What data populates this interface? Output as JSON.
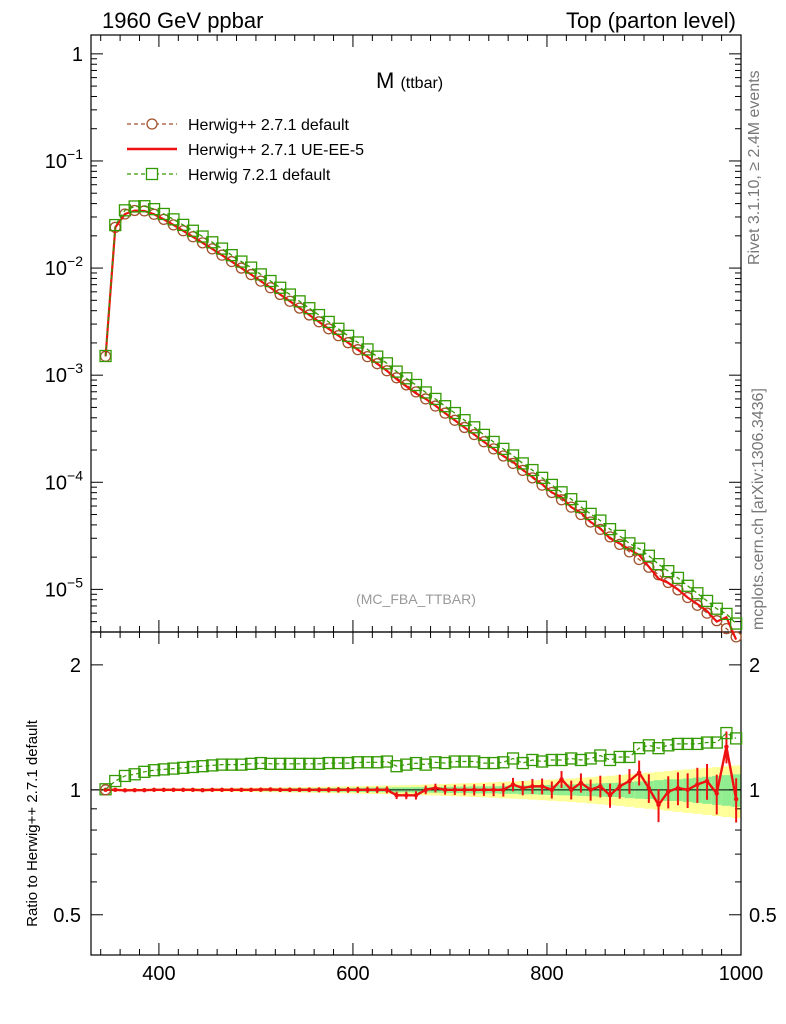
{
  "header": {
    "left": "1960 GeV ppbar",
    "right": "Top (parton level)",
    "side_top": "Rivet 3.1.10, ≥ 2.4M events",
    "side_bottom": "mcplots.cern.ch [arXiv:1306.3436]"
  },
  "chart_data": [
    {
      "type": "line",
      "title": "M (ttbar)",
      "title_main": "M",
      "title_sub": "(ttbar)",
      "watermark": "(MC_FBA_TTBAR)",
      "xlabel": "",
      "ylabel": "",
      "xlim": [
        330,
        1000
      ],
      "ylim": [
        4e-06,
        1.5
      ],
      "yscale": "log",
      "y_ticks": [
        {
          "v": 1,
          "label": "1"
        },
        {
          "v": 0.1,
          "label": "10",
          "exp": "−1"
        },
        {
          "v": 0.01,
          "label": "10",
          "exp": "−2"
        },
        {
          "v": 0.001,
          "label": "10",
          "exp": "−3"
        },
        {
          "v": 0.0001,
          "label": "10",
          "exp": "−4"
        },
        {
          "v": 1e-05,
          "label": "10",
          "exp": "−5"
        }
      ],
      "legend_placement": "top-left",
      "legend": [
        {
          "name": "Herwig++ 2.7.1 default",
          "color": "#a0522d",
          "style": "dashed",
          "marker": "circle"
        },
        {
          "name": "Herwig++ 2.7.1 UE-EE-5",
          "color": "#ee1111",
          "style": "solid",
          "marker": "none"
        },
        {
          "name": "Herwig 7.2.1 default",
          "color": "#339900",
          "style": "dashed",
          "marker": "square"
        }
      ],
      "x": [
        345,
        355,
        365,
        375,
        385,
        395,
        405,
        415,
        425,
        435,
        445,
        455,
        465,
        475,
        485,
        495,
        505,
        515,
        525,
        535,
        545,
        555,
        565,
        575,
        585,
        595,
        605,
        615,
        625,
        635,
        645,
        655,
        665,
        675,
        685,
        695,
        705,
        715,
        725,
        735,
        745,
        755,
        765,
        775,
        785,
        795,
        805,
        815,
        825,
        835,
        845,
        855,
        865,
        875,
        885,
        895,
        905,
        915,
        925,
        935,
        945,
        955,
        965,
        975,
        985,
        995
      ],
      "series": [
        {
          "name": "Herwig++ 2.7.1 default",
          "values": [
            0.0015,
            0.024,
            0.032,
            0.0345,
            0.0342,
            0.0318,
            0.0285,
            0.0253,
            0.0223,
            0.0196,
            0.0172,
            0.0151,
            0.0132,
            0.0115,
            0.01,
            0.0087,
            0.00755,
            0.00655,
            0.00567,
            0.0049,
            0.00423,
            0.00365,
            0.00315,
            0.00271,
            0.00234,
            0.00201,
            0.00173,
            0.00149,
            0.00128,
            0.0011,
            0.000945,
            0.000812,
            0.000698,
            0.0006,
            0.000515,
            0.000442,
            0.000379,
            0.000325,
            0.000279,
            0.000239,
            0.000205,
            0.000176,
            0.00015,
            0.000129,
            0.00011,
            9.4e-05,
            8.03e-05,
            6.86e-05,
            5.86e-05,
            5e-05,
            4.26e-05,
            3.63e-05,
            3.09e-05,
            2.63e-05,
            2.24e-05,
            1.9e-05,
            1.61e-05,
            1.37e-05,
            1.16e-05,
            9.9e-06,
            8.4e-06,
            7.1e-06,
            6e-06,
            5.1e-06,
            4.3e-06,
            3.6e-06
          ]
        },
        {
          "name": "Herwig++ 2.7.1 UE-EE-5",
          "values": [
            0.0015,
            0.024,
            0.0319,
            0.0344,
            0.0341,
            0.0318,
            0.0285,
            0.0253,
            0.0223,
            0.0196,
            0.0172,
            0.0151,
            0.0132,
            0.0115,
            0.01,
            0.00871,
            0.00756,
            0.00656,
            0.00567,
            0.0049,
            0.00423,
            0.00365,
            0.00315,
            0.00271,
            0.00234,
            0.00201,
            0.00173,
            0.00149,
            0.00128,
            0.0011,
            0.000917,
            0.000788,
            0.000677,
            0.0006,
            0.00052,
            0.000442,
            0.000379,
            0.000325,
            0.000279,
            0.000239,
            0.000205,
            0.000176,
            0.000155,
            0.000131,
            0.000112,
            9.6e-05,
            8.03e-05,
            7.27e-05,
            5.86e-05,
            5.2e-05,
            4.26e-05,
            3.7e-05,
            3e-05,
            2.68e-05,
            2.35e-05,
            2.09e-05,
            1.63e-05,
            1.26e-05,
            1.15e-05,
            1e-05,
            8.4e-06,
            7.3e-06,
            6.3e-06,
            5e-06,
            5.5e-06,
            3.4e-06
          ]
        },
        {
          "name": "Herwig 7.2.1 default",
          "values": [
            0.00151,
            0.0252,
            0.0346,
            0.0376,
            0.0378,
            0.0355,
            0.032,
            0.0285,
            0.0253,
            0.0223,
            0.0197,
            0.0174,
            0.0152,
            0.0132,
            0.0115,
            0.0101,
            0.00873,
            0.00757,
            0.00655,
            0.00566,
            0.00489,
            0.00422,
            0.00364,
            0.00314,
            0.00271,
            0.00233,
            0.00202,
            0.00174,
            0.00149,
            0.00129,
            0.00108,
            0.000935,
            0.00081,
            0.00069,
            0.0006,
            0.000513,
            0.000443,
            0.00038,
            0.000326,
            0.000277,
            0.000238,
            0.000205,
            0.000178,
            0.00015,
            0.00013,
            0.00011,
            9.45e-05,
            8.06e-05,
            6.95e-05,
            5.9e-05,
            5.07e-05,
            4.39e-05,
            3.65e-05,
            3.16e-05,
            2.69e-05,
            2.4e-05,
            2.06e-05,
            1.72e-05,
            1.48e-05,
            1.28e-05,
            1.08e-05,
            9.2e-06,
            7.8e-06,
            6.6e-06,
            5.9e-06,
            4.8e-06
          ]
        }
      ]
    },
    {
      "type": "line",
      "title": "",
      "xlabel": "",
      "ylabel": "Ratio to Herwig++ 2.7.1 default",
      "xlim": [
        330,
        1000
      ],
      "ylim": [
        0.4,
        2.4
      ],
      "yscale": "log",
      "y_ticks": [
        {
          "v": 2,
          "label": "2"
        },
        {
          "v": 1,
          "label": "1"
        },
        {
          "v": 0.5,
          "label": "0.5"
        }
      ],
      "x_ticks": [
        400,
        600,
        800,
        1000
      ],
      "band_inner_color": "#90ee90",
      "band_outer_color": "#ffff99",
      "band_inner_halfwidth": [
        0.004,
        0.004,
        0.004,
        0.004,
        0.004,
        0.004,
        0.005,
        0.005,
        0.005,
        0.005,
        0.006,
        0.006,
        0.006,
        0.006,
        0.007,
        0.007,
        0.007,
        0.008,
        0.008,
        0.009,
        0.009,
        0.009,
        0.01,
        0.01,
        0.011,
        0.011,
        0.012,
        0.012,
        0.013,
        0.013,
        0.014,
        0.014,
        0.015,
        0.015,
        0.016,
        0.017,
        0.018,
        0.018,
        0.02,
        0.02,
        0.02,
        0.022,
        0.022,
        0.025,
        0.025,
        0.027,
        0.028,
        0.03,
        0.031,
        0.033,
        0.035,
        0.037,
        0.039,
        0.04,
        0.045,
        0.048,
        0.05,
        0.055,
        0.06,
        0.06,
        0.065,
        0.07,
        0.075,
        0.08,
        0.085,
        0.09
      ],
      "band_outer_halfwidth": [
        0.008,
        0.008,
        0.008,
        0.008,
        0.008,
        0.008,
        0.009,
        0.009,
        0.009,
        0.01,
        0.01,
        0.01,
        0.011,
        0.011,
        0.012,
        0.012,
        0.013,
        0.013,
        0.014,
        0.015,
        0.015,
        0.016,
        0.017,
        0.018,
        0.019,
        0.02,
        0.021,
        0.022,
        0.023,
        0.024,
        0.025,
        0.026,
        0.028,
        0.03,
        0.031,
        0.033,
        0.035,
        0.037,
        0.039,
        0.041,
        0.043,
        0.046,
        0.048,
        0.05,
        0.053,
        0.056,
        0.059,
        0.062,
        0.065,
        0.069,
        0.073,
        0.077,
        0.081,
        0.085,
        0.09,
        0.095,
        0.1,
        0.105,
        0.11,
        0.115,
        0.12,
        0.125,
        0.13,
        0.135,
        0.14,
        0.145
      ],
      "series": [
        {
          "name": "Herwig++ 2.7.1 UE-EE-5",
          "values": [
            1.0,
            1.0,
            0.997,
            0.998,
            0.998,
            1.0,
            1.0,
            1.0,
            1.0,
            1.0,
            0.998,
            1.0,
            1.0,
            1.0,
            1.0,
            1.0,
            1.001,
            1.002,
            1.0,
            1.0,
            1.0,
            1.0,
            1.0,
            1.0,
            1.0,
            1.0,
            1.0,
            1.0,
            1.0,
            1.0,
            0.97,
            0.97,
            0.97,
            1.0,
            1.01,
            1.0,
            1.0,
            1.0,
            1.0,
            1.0,
            1.0,
            1.0,
            1.03,
            1.01,
            1.02,
            1.02,
            1.0,
            1.06,
            1.0,
            1.04,
            1.0,
            1.02,
            0.97,
            1.02,
            1.05,
            1.1,
            1.01,
            0.92,
            0.99,
            1.01,
            1.0,
            1.03,
            1.05,
            0.98,
            1.27,
            0.95
          ]
        },
        {
          "name": "Herwig 7.2.1 default",
          "values": [
            1.003,
            1.05,
            1.08,
            1.09,
            1.105,
            1.115,
            1.12,
            1.125,
            1.13,
            1.135,
            1.14,
            1.145,
            1.15,
            1.15,
            1.15,
            1.155,
            1.16,
            1.155,
            1.155,
            1.155,
            1.155,
            1.155,
            1.155,
            1.16,
            1.16,
            1.16,
            1.165,
            1.165,
            1.165,
            1.17,
            1.14,
            1.15,
            1.16,
            1.15,
            1.165,
            1.16,
            1.17,
            1.17,
            1.17,
            1.16,
            1.16,
            1.165,
            1.19,
            1.16,
            1.18,
            1.17,
            1.18,
            1.18,
            1.19,
            1.18,
            1.19,
            1.21,
            1.18,
            1.2,
            1.2,
            1.26,
            1.28,
            1.26,
            1.28,
            1.29,
            1.29,
            1.29,
            1.3,
            1.3,
            1.37,
            1.33
          ]
        }
      ]
    }
  ]
}
